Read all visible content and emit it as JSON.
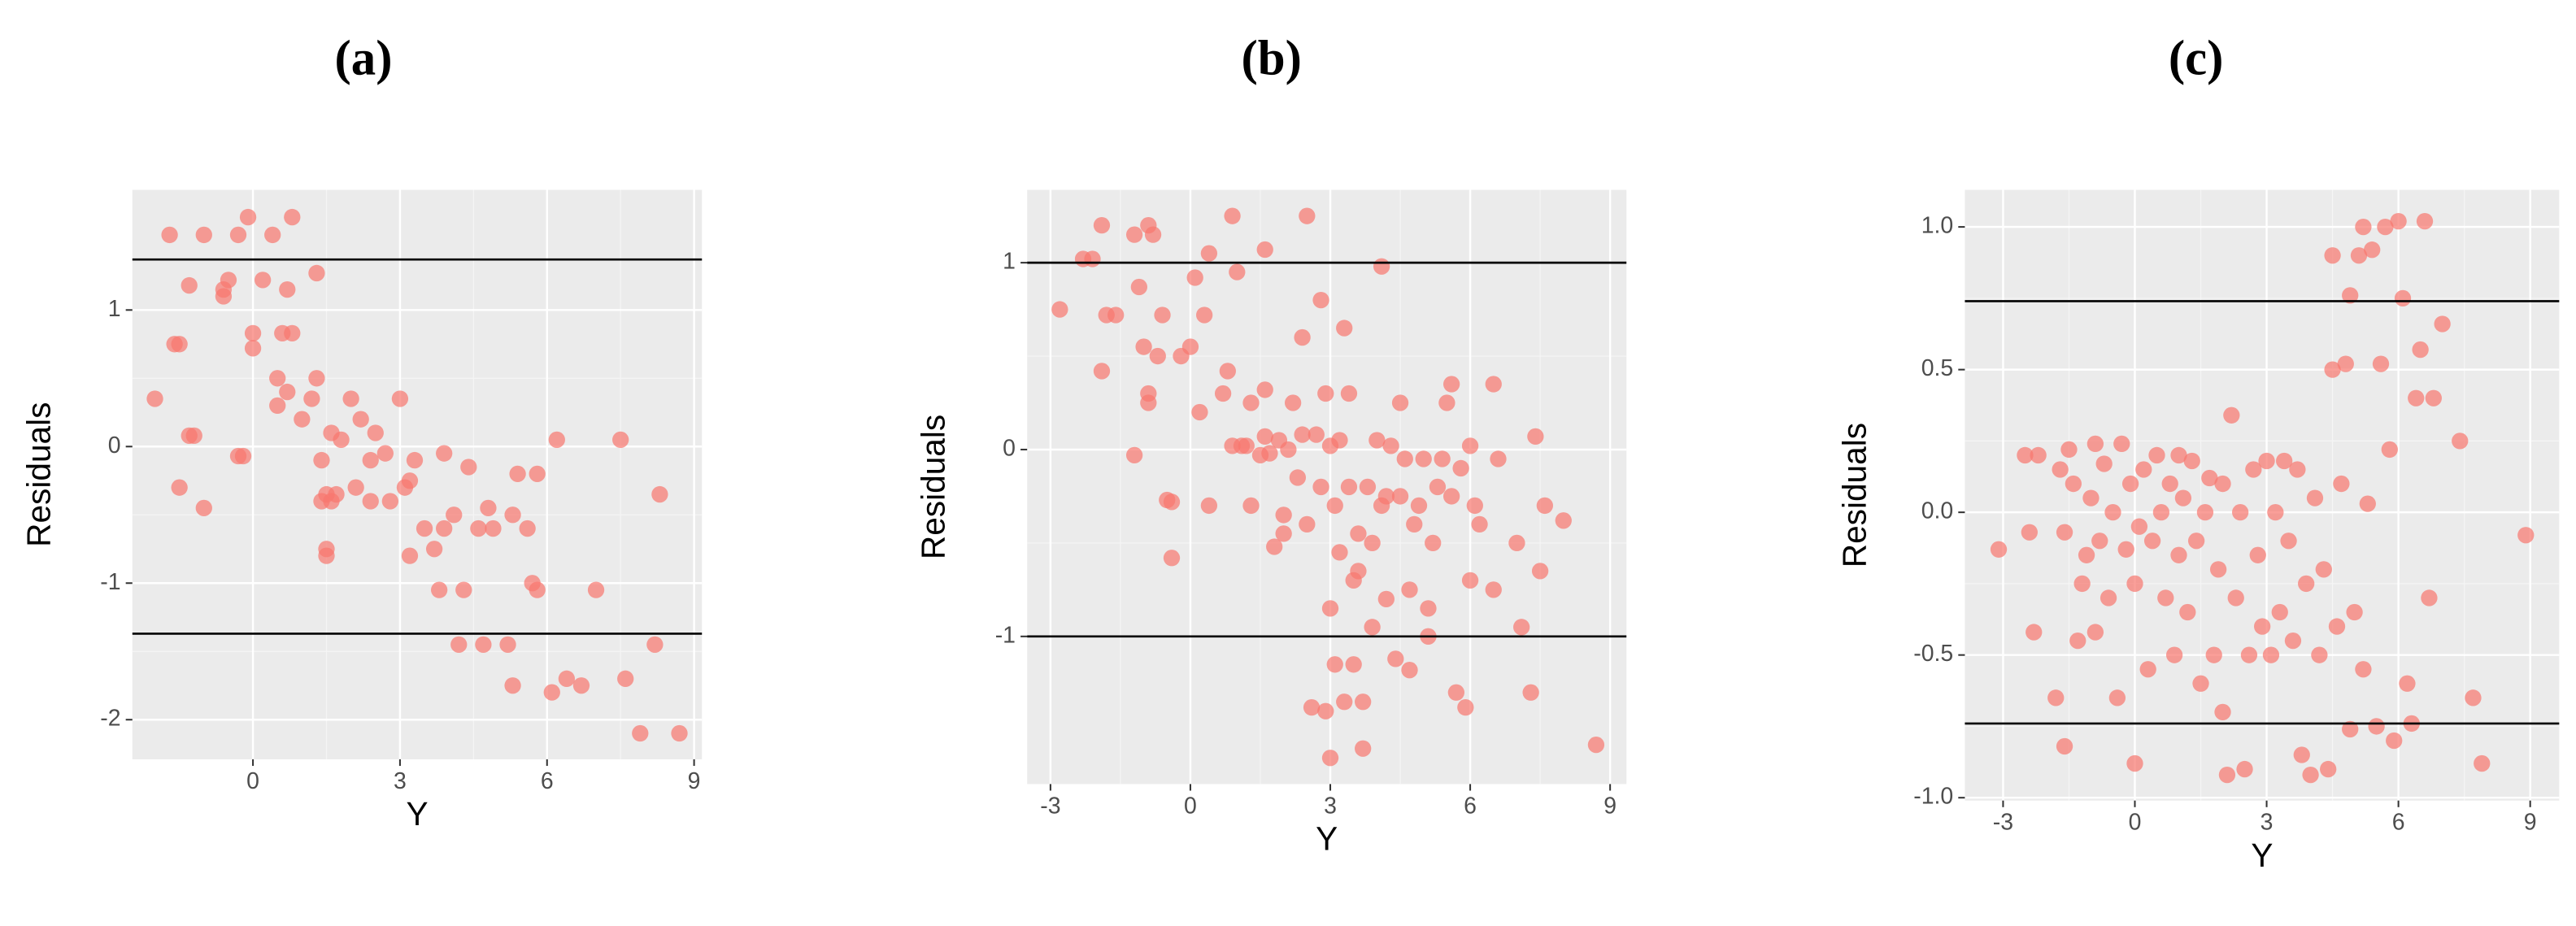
{
  "chart_data": [
    {
      "type": "scatter",
      "title": "(a)",
      "xlabel": "Y",
      "ylabel": "Residuals",
      "color": "#f8766d",
      "grid": true,
      "xlim": [
        -2.46,
        9.16
      ],
      "ylim": [
        -2.29,
        1.88
      ],
      "xticks": [
        0,
        3,
        6,
        9
      ],
      "yticks": [
        -2,
        -1,
        0,
        1
      ],
      "hlines": [
        1.37,
        -1.37
      ],
      "x": [
        -2.0,
        -1.7,
        -1.6,
        -1.5,
        -1.5,
        -1.3,
        -1.3,
        -1.2,
        -1.0,
        -1.0,
        -0.6,
        -0.6,
        -0.5,
        -0.3,
        -0.3,
        -0.2,
        -0.1,
        0.0,
        0.0,
        0.2,
        0.4,
        0.5,
        0.5,
        0.6,
        0.7,
        0.7,
        0.8,
        0.8,
        1.0,
        1.2,
        1.3,
        1.3,
        1.4,
        1.4,
        1.5,
        1.5,
        1.5,
        1.6,
        1.6,
        1.7,
        1.8,
        2.0,
        2.1,
        2.2,
        2.4,
        2.4,
        2.5,
        2.7,
        2.8,
        3.0,
        3.1,
        3.2,
        3.2,
        3.3,
        3.5,
        3.7,
        3.8,
        3.9,
        3.9,
        4.1,
        4.2,
        4.3,
        4.4,
        4.6,
        4.7,
        4.8,
        4.9,
        5.2,
        5.3,
        5.3,
        5.4,
        5.6,
        5.7,
        5.8,
        5.8,
        6.1,
        6.2,
        6.4,
        6.7,
        7.0,
        7.5,
        7.6,
        7.9,
        8.2,
        8.3,
        8.7
      ],
      "values": [
        0.35,
        1.55,
        0.75,
        0.75,
        -0.3,
        1.18,
        0.08,
        0.08,
        1.55,
        -0.45,
        1.1,
        1.15,
        1.22,
        1.55,
        -0.07,
        -0.07,
        1.68,
        0.83,
        0.72,
        1.22,
        1.55,
        0.5,
        0.3,
        0.83,
        1.15,
        0.4,
        0.83,
        1.68,
        0.2,
        0.35,
        1.27,
        0.5,
        -0.1,
        -0.4,
        -0.35,
        -0.8,
        -0.75,
        -0.4,
        0.1,
        -0.35,
        0.05,
        0.35,
        -0.3,
        0.2,
        -0.1,
        -0.4,
        0.1,
        -0.05,
        -0.4,
        0.35,
        -0.3,
        -0.8,
        -0.25,
        -0.1,
        -0.6,
        -0.75,
        -1.05,
        -0.05,
        -0.6,
        -0.5,
        -1.45,
        -1.05,
        -0.15,
        -0.6,
        -1.45,
        -0.45,
        -0.6,
        -1.45,
        -0.5,
        -1.75,
        -0.2,
        -0.6,
        -1.0,
        -1.05,
        -0.2,
        -1.8,
        0.05,
        -1.7,
        -1.75,
        -1.05,
        0.05,
        -1.7,
        -2.1,
        -1.45,
        -0.35,
        -2.1
      ]
    },
    {
      "type": "scatter",
      "title": "(b)",
      "xlabel": "Y",
      "ylabel": "Residuals",
      "color": "#f8766d",
      "grid": true,
      "xlim": [
        -3.5,
        9.35
      ],
      "ylim": [
        -1.79,
        1.39
      ],
      "xticks": [
        -3,
        0,
        3,
        6,
        9
      ],
      "yticks": [
        -1,
        0,
        1
      ],
      "hlines": [
        1.0,
        -1.0
      ],
      "x": [
        -2.8,
        -2.3,
        -2.1,
        -1.9,
        -1.9,
        -1.8,
        -1.6,
        -1.2,
        -1.2,
        -1.1,
        -1.0,
        -0.9,
        -0.9,
        -0.9,
        -0.8,
        -0.7,
        -0.6,
        -0.5,
        -0.4,
        -0.4,
        -0.2,
        0.0,
        0.1,
        0.2,
        0.3,
        0.4,
        0.4,
        0.7,
        0.8,
        0.9,
        0.9,
        1.0,
        1.1,
        1.2,
        1.3,
        1.3,
        1.5,
        1.6,
        1.6,
        1.6,
        1.7,
        1.8,
        1.9,
        2.0,
        2.0,
        2.1,
        2.2,
        2.3,
        2.4,
        2.4,
        2.5,
        2.5,
        2.6,
        2.7,
        2.8,
        2.8,
        2.9,
        2.9,
        3.0,
        3.0,
        3.0,
        3.1,
        3.1,
        3.2,
        3.2,
        3.3,
        3.3,
        3.4,
        3.4,
        3.5,
        3.5,
        3.6,
        3.6,
        3.7,
        3.7,
        3.8,
        3.9,
        3.9,
        4.0,
        4.1,
        4.1,
        4.2,
        4.2,
        4.3,
        4.4,
        4.5,
        4.5,
        4.6,
        4.7,
        4.7,
        4.8,
        4.9,
        5.0,
        5.1,
        5.1,
        5.2,
        5.3,
        5.4,
        5.5,
        5.6,
        5.6,
        5.7,
        5.8,
        5.9,
        6.0,
        6.0,
        6.1,
        6.2,
        6.5,
        6.5,
        6.6,
        7.0,
        7.1,
        7.3,
        7.4,
        7.5,
        7.6,
        8.0,
        8.7
      ],
      "values": [
        0.75,
        1.02,
        1.02,
        1.2,
        0.42,
        0.72,
        0.72,
        1.15,
        -0.03,
        0.87,
        0.55,
        1.2,
        0.3,
        0.25,
        1.15,
        0.5,
        0.72,
        -0.27,
        -0.58,
        -0.28,
        0.5,
        0.55,
        0.92,
        0.2,
        0.72,
        1.05,
        -0.3,
        0.3,
        0.42,
        1.25,
        0.02,
        0.95,
        0.02,
        0.02,
        -0.3,
        0.25,
        -0.03,
        0.07,
        1.07,
        0.32,
        -0.02,
        -0.52,
        0.05,
        -0.45,
        -0.35,
        0.0,
        0.25,
        -0.15,
        0.08,
        0.6,
        1.25,
        -0.4,
        -1.38,
        0.08,
        0.8,
        -0.2,
        0.3,
        -1.4,
        -0.85,
        -1.65,
        0.02,
        -1.15,
        -0.3,
        0.05,
        -0.55,
        -1.35,
        0.65,
        0.3,
        -0.2,
        -1.15,
        -0.7,
        -0.45,
        -0.65,
        -1.35,
        -1.6,
        -0.2,
        -0.5,
        -0.95,
        0.05,
        0.98,
        -0.3,
        -0.8,
        -0.25,
        0.02,
        -1.12,
        -0.25,
        0.25,
        -0.05,
        -1.18,
        -0.75,
        -0.4,
        -0.3,
        -0.05,
        -0.85,
        -1.0,
        -0.5,
        -0.2,
        -0.05,
        0.25,
        0.35,
        -0.25,
        -1.3,
        -0.1,
        -1.38,
        0.02,
        -0.7,
        -0.3,
        -0.4,
        -0.75,
        0.35,
        -0.05,
        -0.5,
        -0.95,
        -1.3,
        0.07,
        -0.65,
        -0.3,
        -0.38,
        -1.58
      ]
    },
    {
      "type": "scatter",
      "title": "(c)",
      "xlabel": "Y",
      "ylabel": "Residuals",
      "color": "#f8766d",
      "grid": true,
      "xlim": [
        -3.87,
        9.66
      ],
      "ylim": [
        -1.01,
        1.13
      ],
      "xticks": [
        -3,
        0,
        3,
        6,
        9
      ],
      "yticks": [
        {
          "value": -1.0,
          "label": "-1.0"
        },
        {
          "value": -0.5,
          "label": "-0.5"
        },
        {
          "value": 0.0,
          "label": "0.0"
        },
        {
          "value": 0.5,
          "label": "0.5"
        },
        {
          "value": 1.0,
          "label": "1.0"
        }
      ],
      "hlines": [
        0.74,
        -0.74
      ],
      "x": [
        -3.1,
        -2.5,
        -2.4,
        -2.3,
        -2.2,
        -1.8,
        -1.7,
        -1.6,
        -1.6,
        -1.5,
        -1.4,
        -1.3,
        -1.2,
        -1.1,
        -1.0,
        -0.9,
        -0.9,
        -0.8,
        -0.7,
        -0.6,
        -0.5,
        -0.4,
        -0.3,
        -0.2,
        -0.1,
        0.0,
        0.0,
        0.1,
        0.2,
        0.3,
        0.4,
        0.5,
        0.6,
        0.7,
        0.8,
        0.9,
        1.0,
        1.0,
        1.1,
        1.2,
        1.3,
        1.4,
        1.5,
        1.6,
        1.7,
        1.8,
        1.9,
        2.0,
        2.0,
        2.1,
        2.2,
        2.3,
        2.4,
        2.5,
        2.6,
        2.7,
        2.8,
        2.9,
        3.0,
        3.1,
        3.2,
        3.3,
        3.4,
        3.5,
        3.6,
        3.7,
        3.8,
        3.9,
        4.0,
        4.1,
        4.2,
        4.3,
        4.4,
        4.5,
        4.5,
        4.6,
        4.7,
        4.8,
        4.9,
        4.9,
        5.0,
        5.1,
        5.2,
        5.2,
        5.3,
        5.4,
        5.5,
        5.6,
        5.7,
        5.8,
        5.9,
        6.0,
        6.1,
        6.2,
        6.3,
        6.4,
        6.5,
        6.6,
        6.7,
        6.8,
        7.0,
        7.4,
        7.7,
        7.9,
        8.9
      ],
      "values": [
        -0.13,
        0.2,
        -0.07,
        -0.42,
        0.2,
        -0.65,
        0.15,
        -0.07,
        -0.82,
        0.22,
        0.1,
        -0.45,
        -0.25,
        -0.15,
        0.05,
        0.24,
        -0.42,
        -0.1,
        0.17,
        -0.3,
        0.0,
        -0.65,
        0.24,
        -0.13,
        0.1,
        -0.25,
        -0.88,
        -0.05,
        0.15,
        -0.55,
        -0.1,
        0.2,
        0.0,
        -0.3,
        0.1,
        -0.5,
        0.2,
        -0.15,
        0.05,
        -0.35,
        0.18,
        -0.1,
        -0.6,
        0.0,
        0.12,
        -0.5,
        -0.2,
        -0.7,
        0.1,
        -0.92,
        0.34,
        -0.3,
        0.0,
        -0.9,
        -0.5,
        0.15,
        -0.15,
        -0.4,
        0.18,
        -0.5,
        0.0,
        -0.35,
        0.18,
        -0.1,
        -0.45,
        0.15,
        -0.85,
        -0.25,
        -0.92,
        0.05,
        -0.5,
        -0.2,
        -0.9,
        0.9,
        0.5,
        -0.4,
        0.1,
        0.52,
        0.76,
        -0.76,
        -0.35,
        0.9,
        1.0,
        -0.55,
        0.03,
        0.92,
        -0.75,
        0.52,
        1.0,
        0.22,
        -0.8,
        1.02,
        0.75,
        -0.6,
        -0.74,
        0.4,
        0.57,
        1.02,
        -0.3,
        0.4,
        0.66,
        0.25,
        -0.65,
        -0.88,
        -0.08
      ]
    }
  ]
}
